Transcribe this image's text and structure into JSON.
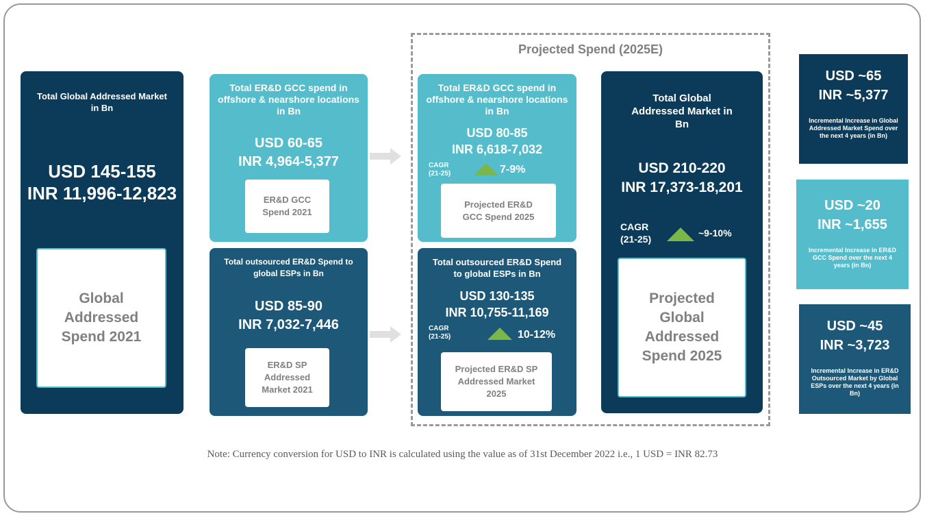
{
  "title": "Projected Spend (2025E)",
  "panels": {
    "global_2021": {
      "heading": "Total Global Addressed Market in Bn",
      "usd": "USD 145-155",
      "inr": "INR 11,996-12,823",
      "label": "Global Addressed Spend 2021"
    },
    "gcc_2021": {
      "heading": "Total ER&D GCC spend in offshore & nearshore locations in Bn",
      "usd": "USD 60-65",
      "inr": "INR 4,964-5,377",
      "label": "ER&D GCC Spend 2021"
    },
    "esp_2021": {
      "heading": "Total outsourced ER&D Spend to global ESPs in Bn",
      "usd": "USD 85-90",
      "inr": "INR 7,032-7,446",
      "label": "ER&D SP Addressed Market 2021"
    },
    "gcc_2025": {
      "heading": "Total ER&D GCC spend in offshore & nearshore locations in Bn",
      "usd": "USD 80-85",
      "inr": "INR 6,618-7,032",
      "cagr_label": "CAGR (21-25)",
      "cagr": "7-9%",
      "label": "Projected ER&D GCC Spend 2025"
    },
    "esp_2025": {
      "heading": "Total outsourced ER&D Spend to global ESPs in Bn",
      "usd": "USD 130-135",
      "inr": "INR 10,755-11,169",
      "cagr_label": "CAGR (21-25)",
      "cagr": "10-12%",
      "label": "Projected ER&D SP Addressed Market 2025"
    },
    "global_2025": {
      "heading": "Total Global Addressed Market in Bn",
      "usd": "USD 210-220",
      "inr": "INR 17,373-18,201",
      "cagr_label": "CAGR (21-25)",
      "cagr": "~9-10%",
      "label": "Projected Global Addressed Spend 2025"
    }
  },
  "increments": [
    {
      "usd": "USD ~65",
      "inr": "INR ~5,377",
      "text": "Incremental Increase in Global Addressed Market Spend over the next 4 years (in Bn)"
    },
    {
      "usd": "USD ~20",
      "inr": "INR ~1,655",
      "text": "Incremental Increase in ER&D GCC Spend over the next 4 years (in Bn)"
    },
    {
      "usd": "USD ~45",
      "inr": "INR ~3,723",
      "text": "Incremental Increase in ER&D Outsourced Market by Global ESPs over the next 4 years (in Bn)"
    }
  ],
  "note": "Note: Currency conversion for USD to INR is calculated using the value as of 31st December 2022 i.e., 1 USD = INR 82.73"
}
